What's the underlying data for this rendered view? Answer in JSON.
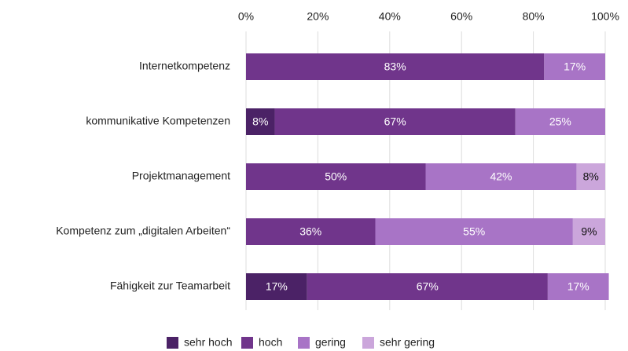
{
  "chart_data": {
    "type": "stacked-bar-horizontal",
    "categories": [
      "Internetkompetenz",
      "kommunikative Kompetenzen",
      "Projektmanagement",
      "Kompetenz zum „digitalen Arbeiten“",
      "Fähigkeit zur Teamarbeit"
    ],
    "series": [
      {
        "name": "sehr hoch",
        "color": "#4b2266",
        "values": [
          0,
          8,
          0,
          0,
          17
        ],
        "value_labels": [
          null,
          "8%",
          null,
          null,
          "17%"
        ]
      },
      {
        "name": "hoch",
        "color": "#70358b",
        "values": [
          83,
          67,
          50,
          36,
          67
        ],
        "value_labels": [
          "83%",
          "67%",
          "50%",
          "36%",
          "67%"
        ]
      },
      {
        "name": "gering",
        "color": "#a874c6",
        "values": [
          17,
          25,
          42,
          55,
          17
        ],
        "value_labels": [
          "17%",
          "25%",
          "42%",
          "55%",
          "17%"
        ]
      },
      {
        "name": "sehr gering",
        "color": "#cba6db",
        "values": [
          0,
          0,
          8,
          9,
          0
        ],
        "value_labels": [
          null,
          null,
          "8%",
          "9%",
          null
        ]
      }
    ],
    "xlim": [
      0,
      100
    ],
    "xticks": [
      {
        "value": 0,
        "label": "0%"
      },
      {
        "value": 20,
        "label": "20%"
      },
      {
        "value": 40,
        "label": "40%"
      },
      {
        "value": 60,
        "label": "60%"
      },
      {
        "value": 80,
        "label": "80%"
      },
      {
        "value": 100,
        "label": "100%"
      }
    ],
    "grid": true,
    "legend": "bottom"
  }
}
